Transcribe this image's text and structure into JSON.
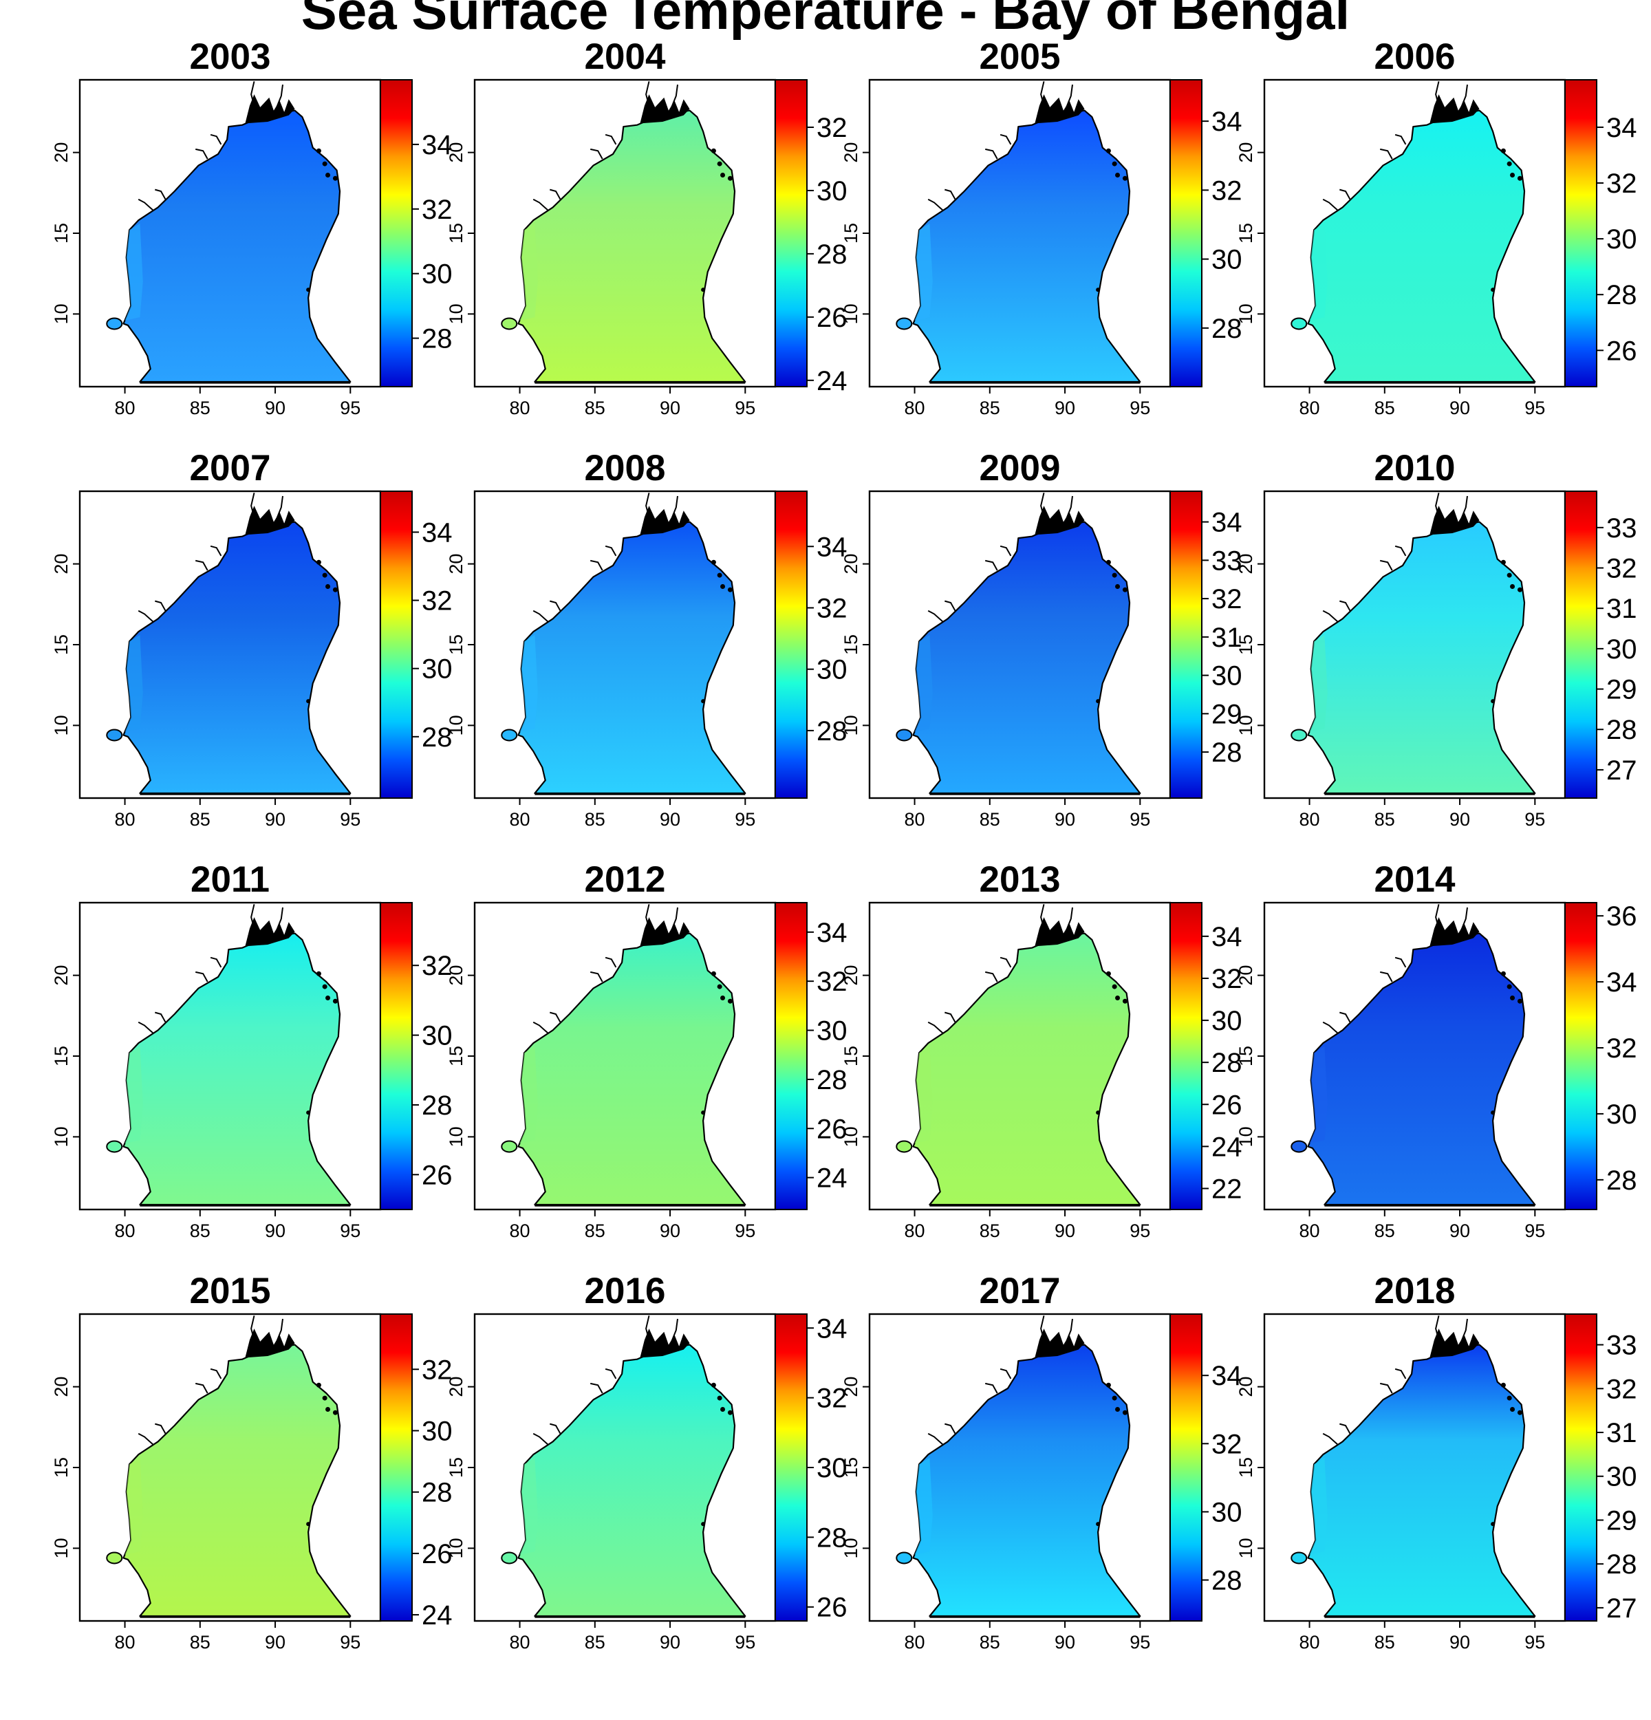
{
  "title": "Sea Surface Temperature - Bay of Bengal",
  "chart_data": {
    "type": "heatmap",
    "title": "Sea Surface Temperature - Bay of Bengal",
    "colormap": [
      "#0000cc",
      "#0055ff",
      "#00c8ff",
      "#1effd8",
      "#8cff66",
      "#ffff00",
      "#ff9900",
      "#ff0000",
      "#cc0000"
    ],
    "xticks": [
      80,
      85,
      90,
      95
    ],
    "yticks": [
      10,
      15,
      20
    ],
    "xlim": [
      77,
      97
    ],
    "ylim": [
      5.5,
      24.5
    ],
    "grid": false,
    "panels": [
      {
        "year": "2003",
        "range": [
          26.5,
          36
        ],
        "cb_ticks": [
          28,
          30,
          32,
          34
        ],
        "colors": {
          "north": "#0a5cff",
          "body": "#1b7cf3",
          "south": "#2aa2ff",
          "west": "#27a8ff"
        }
      },
      {
        "year": "2004",
        "range": [
          23.8,
          33.5
        ],
        "cb_ticks": [
          24,
          26,
          28,
          30,
          32
        ],
        "colors": {
          "north": "#5ff0a8",
          "body": "#96f277",
          "south": "#b8fa4c",
          "west": "#a0f56a"
        }
      },
      {
        "year": "2005",
        "range": [
          26.3,
          35.2
        ],
        "cb_ticks": [
          28,
          30,
          32,
          34
        ],
        "colors": {
          "north": "#0d4dff",
          "body": "#1e82f5",
          "south": "#2cc9ff",
          "west": "#2ab0ff"
        }
      },
      {
        "year": "2006",
        "range": [
          24.7,
          35.7
        ],
        "cb_ticks": [
          26,
          28,
          30,
          32,
          34
        ],
        "colors": {
          "north": "#16f2f2",
          "body": "#2cf5dc",
          "south": "#3df8cc",
          "west": "#30f5d8"
        }
      },
      {
        "year": "2007",
        "range": [
          26.2,
          35.2
        ],
        "cb_ticks": [
          28,
          30,
          32,
          34
        ],
        "colors": {
          "north": "#0a44f0",
          "body": "#1466ea",
          "south": "#29b3ff",
          "west": "#2098f5"
        }
      },
      {
        "year": "2008",
        "range": [
          25.8,
          35.8
        ],
        "cb_ticks": [
          28,
          30,
          32,
          34
        ],
        "colors": {
          "north": "#0a52f5",
          "body": "#229af5",
          "south": "#2cd0ff",
          "west": "#28b8ff"
        }
      },
      {
        "year": "2009",
        "range": [
          26.8,
          34.8
        ],
        "cb_ticks": [
          28,
          29,
          30,
          31,
          32,
          33,
          34
        ],
        "colors": {
          "north": "#0b3cec",
          "body": "#1a6eea",
          "south": "#24a8ff",
          "west": "#1f8ef5"
        }
      },
      {
        "year": "2010",
        "range": [
          26.3,
          33.9
        ],
        "cb_ticks": [
          27,
          28,
          29,
          30,
          31,
          32,
          33
        ],
        "colors": {
          "north": "#28ccff",
          "body": "#2ee6f0",
          "south": "#60f6b8",
          "west": "#4af0c8"
        }
      },
      {
        "year": "2011",
        "range": [
          25,
          33.8
        ],
        "cb_ticks": [
          26,
          28,
          30,
          32
        ],
        "colors": {
          "north": "#16eef0",
          "body": "#4ef5c8",
          "south": "#80f88e",
          "west": "#66f6a8"
        }
      },
      {
        "year": "2012",
        "range": [
          22.7,
          35.2
        ],
        "cb_ticks": [
          24,
          26,
          28,
          30,
          32,
          34
        ],
        "colors": {
          "north": "#3cf2c8",
          "body": "#78f58f",
          "south": "#96f770",
          "west": "#88f67e"
        }
      },
      {
        "year": "2013",
        "range": [
          21,
          35.6
        ],
        "cb_ticks": [
          22,
          24,
          26,
          28,
          30,
          32,
          34
        ],
        "colors": {
          "north": "#6af5a0",
          "body": "#96f56e",
          "south": "#a6f85c",
          "west": "#9cf566"
        }
      },
      {
        "year": "2014",
        "range": [
          27.1,
          36.4
        ],
        "cb_ticks": [
          28,
          30,
          32,
          34,
          36
        ],
        "colors": {
          "north": "#0a2ce0",
          "body": "#124ee6",
          "south": "#1a74f0",
          "west": "#1a60ec"
        }
      },
      {
        "year": "2015",
        "range": [
          23.8,
          33.8
        ],
        "cb_ticks": [
          24,
          26,
          28,
          30,
          32
        ],
        "colors": {
          "north": "#78f59a",
          "body": "#9cf56c",
          "south": "#b4f54c",
          "west": "#a8f55c"
        }
      },
      {
        "year": "2016",
        "range": [
          25.6,
          34.4
        ],
        "cb_ticks": [
          26,
          28,
          30,
          32,
          34
        ],
        "colors": {
          "north": "#16f0f0",
          "body": "#4cf5c0",
          "south": "#80f68c",
          "west": "#66f6a6"
        }
      },
      {
        "year": "2017",
        "range": [
          26.8,
          35.8
        ],
        "cb_ticks": [
          28,
          30,
          32,
          34
        ],
        "colors": {
          "north": "#0a40ee",
          "body": "#1b8ef5",
          "south": "#22e2ff",
          "west": "#20c0ff"
        }
      },
      {
        "year": "2018",
        "range": [
          26.7,
          33.7
        ],
        "cb_ticks": [
          27,
          28,
          29,
          30,
          31,
          32,
          33
        ],
        "colors": {
          "north": "#0a3cf0",
          "body": "#22bcf8",
          "south": "#22e8f0",
          "west": "#22d4f4"
        }
      }
    ]
  }
}
